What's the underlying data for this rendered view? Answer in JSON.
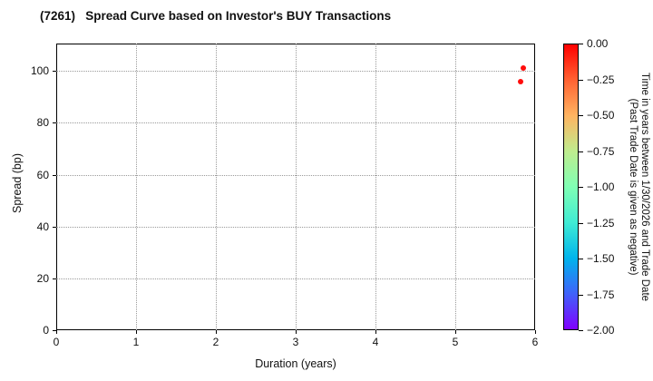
{
  "chart_data": {
    "type": "scatter",
    "title": "(7261)   Spread Curve based on Investor's BUY Transactions",
    "xlabel": "Duration (years)",
    "ylabel": "Spread (bp)",
    "xlim": [
      0,
      6
    ],
    "ylim": [
      0,
      110.6
    ],
    "x_ticks": [
      0,
      1,
      2,
      3,
      4,
      5,
      6
    ],
    "y_ticks": [
      0,
      20,
      40,
      60,
      80,
      100
    ],
    "grid": true,
    "grid_style": "dotted",
    "legend": "none",
    "points": [
      {
        "x": 5.85,
        "y": 101,
        "value": 0.0,
        "color": "#ff0d0c"
      },
      {
        "x": 5.82,
        "y": 96,
        "value": 0.0,
        "color": "#ff0d0c"
      }
    ],
    "colorbar": {
      "label_line1": "Time in years between 1/30/2026 and Trade Date",
      "label_line2": "(Past Trade Date is given as negative)",
      "ticks": [
        "0.00",
        "−0.25",
        "−0.50",
        "−0.75",
        "−1.00",
        "−1.25",
        "−1.50",
        "−1.75",
        "−2.00"
      ],
      "vmax": 0.0,
      "vmin": -2.0,
      "colormap": "rainbow reversed (0.00 red at top, −2.00 violet at bottom)",
      "gradient_stops": [
        "#ff0000",
        "#ff6232",
        "#ffb461",
        "#bfec8e",
        "#80ffb4",
        "#40ecd4",
        "#00b4ec",
        "#4062fa",
        "#8000ff"
      ]
    }
  }
}
